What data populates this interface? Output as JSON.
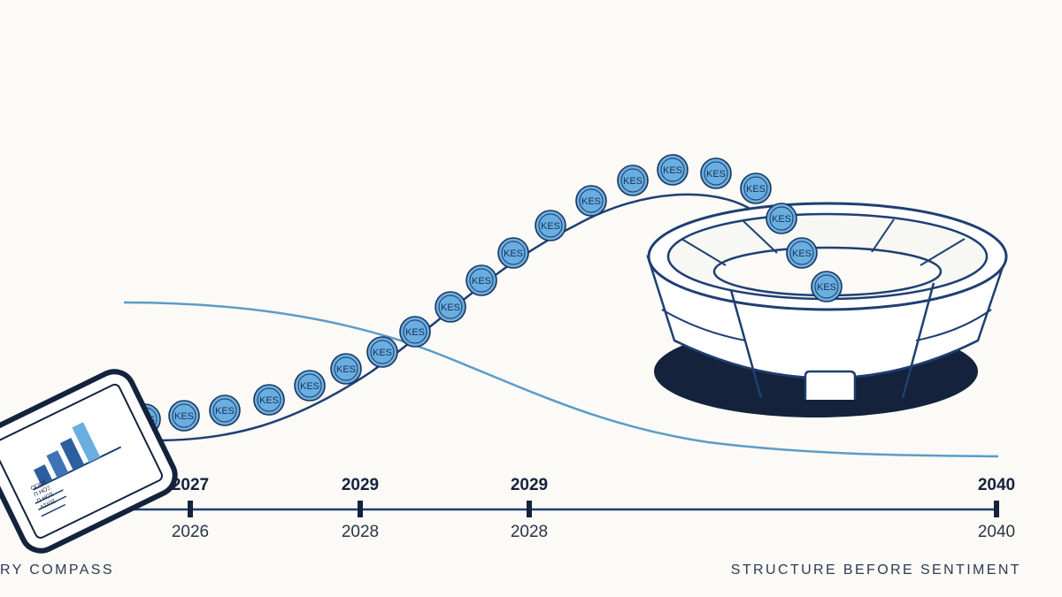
{
  "coin_label": "KES",
  "coin_count": 22,
  "timeline": {
    "ticks": [
      {
        "top_label": "2027",
        "bottom_label": "2026"
      },
      {
        "top_label": "2029",
        "bottom_label": "2028"
      },
      {
        "top_label": "2029",
        "bottom_label": "2028"
      },
      {
        "top_label": "2040",
        "bottom_label": "2040"
      }
    ]
  },
  "phone": {
    "screen_text": "ΟΓΙΟΣ\nΠ ΗΟΞ\nΠ ΗΟΣ\nΑΣΙΩΣ"
  },
  "footer": {
    "left": "RY COMPASS",
    "right": "STRUCTURE BEFORE SENTIMENT"
  },
  "colors": {
    "background": "#fbfaf6",
    "navy": "#1f3f73",
    "light_line": "#5b9cc9",
    "coin_fill": "#6aaee0",
    "dark": "#14223c"
  }
}
